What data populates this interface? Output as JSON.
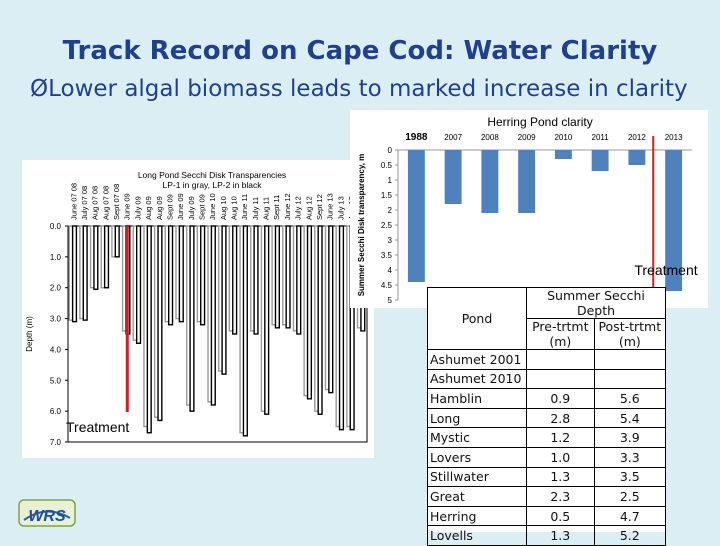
{
  "slide": {
    "title": "Track Record on Cape Cod: Water Clarity",
    "bullet_symbol": "Ø",
    "bullet": "Lower algal biomass leads to marked increase in clarity"
  },
  "logo": {
    "text": "WRS",
    "icon": "wrs-logo"
  },
  "chart_data": [
    {
      "type": "bar",
      "title": "Long Pond Secchi Disk Transparencies",
      "subtitle": "LP-1 in gray, LP-2 in black",
      "ylabel": "Depth (m)",
      "ylim": [
        0,
        7
      ],
      "y_inverted": true,
      "y_ticks": [
        "0.0",
        "1.0",
        "2.0",
        "3.0",
        "4.0",
        "5.0",
        "6.0",
        "7.0"
      ],
      "categories": [
        "June 07 08",
        "July 07 08",
        "Aug 07 08",
        "Aug 07 08",
        "Sept 07 08",
        "June 09",
        "July 09",
        "Aug 09",
        "Aug 09",
        "Sept 09",
        "June 09",
        "July 09",
        "Sept 09",
        "June 10",
        "Aug 10",
        "Aug 10",
        "June 11",
        "July 11",
        "Aug 11",
        "Sept 11",
        "June 12",
        "July 12",
        "Aug 12",
        "Sept 12",
        "June 13",
        "July 13",
        "Aug 13",
        "Sept 13"
      ],
      "series": [
        {
          "name": "LP-1",
          "color": "#9a9a9a",
          "values": [
            3.05,
            3.0,
            2.0,
            2.0,
            1.0,
            3.4,
            3.7,
            6.5,
            6.2,
            3.1,
            3.0,
            5.8,
            3.1,
            5.7,
            4.7,
            3.4,
            6.7,
            3.4,
            6.0,
            3.2,
            3.2,
            3.4,
            5.5,
            6.0,
            5.3,
            6.5,
            6.5,
            3.3
          ]
        },
        {
          "name": "LP-2",
          "color": "#000000",
          "values": [
            3.1,
            3.05,
            2.05,
            2.0,
            1.0,
            3.5,
            3.8,
            6.7,
            6.3,
            3.2,
            3.1,
            6.0,
            3.2,
            5.8,
            4.8,
            3.5,
            6.8,
            3.5,
            6.1,
            3.3,
            3.3,
            3.5,
            5.6,
            6.1,
            5.4,
            6.6,
            6.6,
            3.4
          ]
        }
      ],
      "annotation": "Treatment",
      "treatment_after_category_index": 5,
      "treatment_color": "#cc1f1f"
    },
    {
      "type": "bar",
      "title": "Herring Pond clarity",
      "ylabel": "Summer Secchi Disk transparency, m",
      "ylim": [
        0,
        5
      ],
      "y_inverted": true,
      "y_ticks": [
        "0",
        "0.5",
        "1",
        "1.5",
        "2",
        "2.5",
        "3",
        "3.5",
        "4",
        "4.5",
        "5"
      ],
      "categories": [
        "1988",
        "2007",
        "2008",
        "2009",
        "2010",
        "2011",
        "2012",
        "2013"
      ],
      "values": [
        4.4,
        1.8,
        2.1,
        2.1,
        0.3,
        0.7,
        0.5,
        4.7
      ],
      "color": "#4f81bd",
      "annotation": "Treatment",
      "treatment_after_category_index": 6,
      "treatment_color": "#cc1f1f"
    },
    {
      "type": "table",
      "header_group": "Summer Secchi Depth",
      "columns": [
        "Pond",
        "Pre-trtmt (m)",
        "Post-trtmt (m)"
      ],
      "rows": [
        [
          "Ashumet 2001",
          "",
          ""
        ],
        [
          "Ashumet 2010",
          "",
          ""
        ],
        [
          "Hamblin",
          "0.9",
          "5.6"
        ],
        [
          "Long",
          "2.8",
          "5.4"
        ],
        [
          "Mystic",
          "1.2",
          "3.9"
        ],
        [
          "Lovers",
          "1.0",
          "3.3"
        ],
        [
          "Stillwater",
          "1.3",
          "3.5"
        ],
        [
          "Great",
          "2.3",
          "2.5"
        ],
        [
          "Herring",
          "0.5",
          "4.7"
        ],
        [
          "Lovells",
          "1.3",
          "5.2"
        ]
      ]
    }
  ]
}
